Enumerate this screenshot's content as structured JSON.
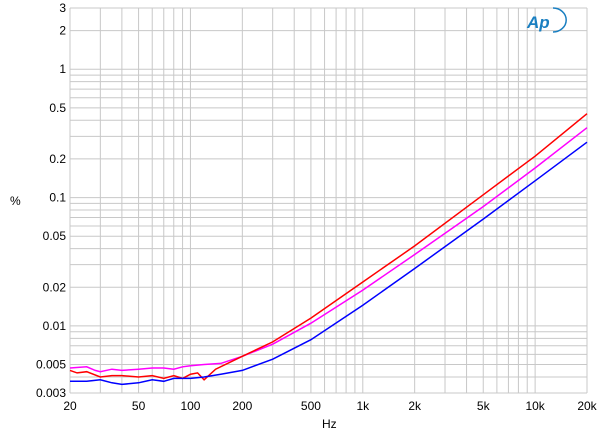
{
  "chart_data": {
    "type": "line",
    "title": "",
    "xlabel": "Hz",
    "ylabel": "%",
    "xscale": "log",
    "yscale": "log",
    "xlim": [
      20,
      20000
    ],
    "ylim": [
      0.003,
      3
    ],
    "grid": true,
    "logo": "Ap",
    "x_ticks": [
      {
        "v": 20,
        "l": "20"
      },
      {
        "v": 50,
        "l": "50"
      },
      {
        "v": 100,
        "l": "100"
      },
      {
        "v": 200,
        "l": "200"
      },
      {
        "v": 500,
        "l": "500"
      },
      {
        "v": 1000,
        "l": "1k"
      },
      {
        "v": 2000,
        "l": "2k"
      },
      {
        "v": 5000,
        "l": "5k"
      },
      {
        "v": 10000,
        "l": "10k"
      },
      {
        "v": 20000,
        "l": "20k"
      }
    ],
    "y_ticks": [
      {
        "v": 3,
        "l": "3"
      },
      {
        "v": 2,
        "l": "2"
      },
      {
        "v": 1,
        "l": "1"
      },
      {
        "v": 0.5,
        "l": "0.5"
      },
      {
        "v": 0.2,
        "l": "0.2"
      },
      {
        "v": 0.1,
        "l": "0.1"
      },
      {
        "v": 0.05,
        "l": "0.05"
      },
      {
        "v": 0.02,
        "l": "0.02"
      },
      {
        "v": 0.01,
        "l": "0.01"
      },
      {
        "v": 0.005,
        "l": "0.005"
      },
      {
        "v": 0.003,
        "l": "0.003"
      }
    ],
    "series": [
      {
        "color": "#ff00ff",
        "x": [
          20,
          25,
          28,
          30,
          35,
          40,
          50,
          60,
          70,
          80,
          90,
          100,
          120,
          150,
          200,
          300,
          500,
          1000,
          2000,
          5000,
          10000,
          20000
        ],
        "y": [
          0.0047,
          0.0048,
          0.0045,
          0.0044,
          0.0046,
          0.0045,
          0.0046,
          0.0047,
          0.0047,
          0.0046,
          0.0048,
          0.0049,
          0.005,
          0.0051,
          0.0058,
          0.0072,
          0.0105,
          0.019,
          0.036,
          0.085,
          0.17,
          0.35
        ]
      },
      {
        "color": "#ff0000",
        "x": [
          20,
          22,
          25,
          30,
          35,
          40,
          50,
          60,
          70,
          80,
          90,
          100,
          110,
          120,
          140,
          200,
          300,
          500,
          1000,
          2000,
          5000,
          10000,
          20000
        ],
        "y": [
          0.0045,
          0.0043,
          0.0044,
          0.004,
          0.0041,
          0.0041,
          0.004,
          0.0041,
          0.0039,
          0.0041,
          0.0039,
          0.0042,
          0.0043,
          0.0038,
          0.0046,
          0.0058,
          0.0075,
          0.0115,
          0.022,
          0.042,
          0.105,
          0.21,
          0.45
        ]
      },
      {
        "color": "#0000ff",
        "x": [
          20,
          25,
          30,
          35,
          40,
          50,
          60,
          70,
          80,
          100,
          120,
          150,
          200,
          300,
          500,
          1000,
          2000,
          5000,
          10000,
          20000
        ],
        "y": [
          0.0037,
          0.0037,
          0.0038,
          0.0036,
          0.0035,
          0.0036,
          0.0038,
          0.0037,
          0.0039,
          0.0039,
          0.004,
          0.0042,
          0.0045,
          0.0055,
          0.0078,
          0.0145,
          0.028,
          0.068,
          0.135,
          0.27
        ]
      }
    ]
  }
}
